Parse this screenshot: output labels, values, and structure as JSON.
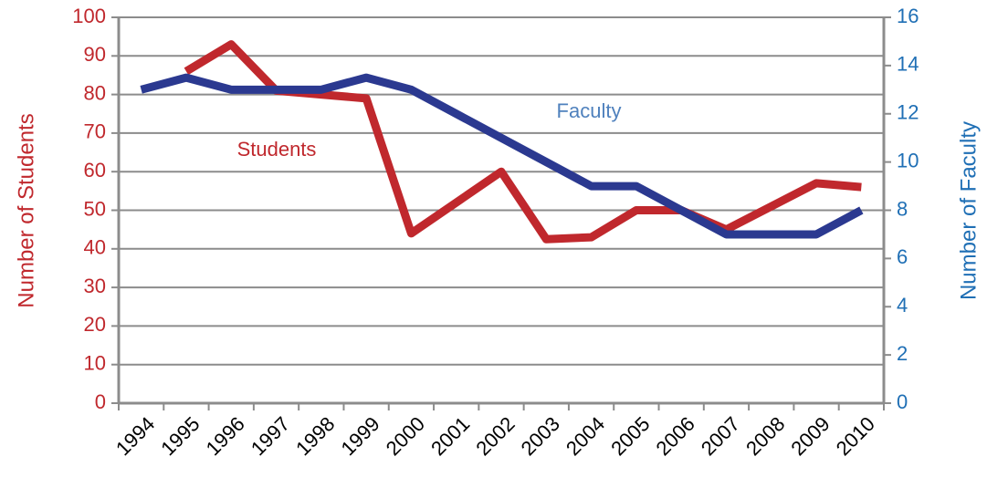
{
  "chart_data": {
    "type": "line",
    "categories": [
      "1994",
      "1995",
      "1996",
      "1997",
      "1998",
      "1999",
      "2000",
      "2001",
      "2002",
      "2003",
      "2004",
      "2005",
      "2006",
      "2007",
      "2008",
      "2009",
      "2010"
    ],
    "series": [
      {
        "name": "Students",
        "color": "#c0282d",
        "values": [
          null,
          86,
          93,
          81,
          80,
          79,
          44,
          52,
          60,
          42.5,
          43,
          50,
          50,
          45,
          51,
          57,
          56
        ]
      },
      {
        "name": "Faculty",
        "color": "#2b3990",
        "axis": "y2",
        "values": [
          13,
          13.5,
          13,
          13,
          13,
          13.5,
          13,
          12,
          11,
          10,
          9,
          9,
          8,
          7,
          7,
          7,
          8
        ]
      }
    ],
    "ylabel": "Number of Students",
    "y2label": "Number of Faculty",
    "ylim": [
      0,
      100
    ],
    "yticks": [
      0,
      10,
      20,
      30,
      40,
      50,
      60,
      70,
      80,
      90,
      100
    ],
    "y2lim": [
      0,
      16
    ],
    "y2ticks": [
      0,
      2,
      4,
      6,
      8,
      10,
      12,
      14,
      16
    ],
    "grid": true
  }
}
